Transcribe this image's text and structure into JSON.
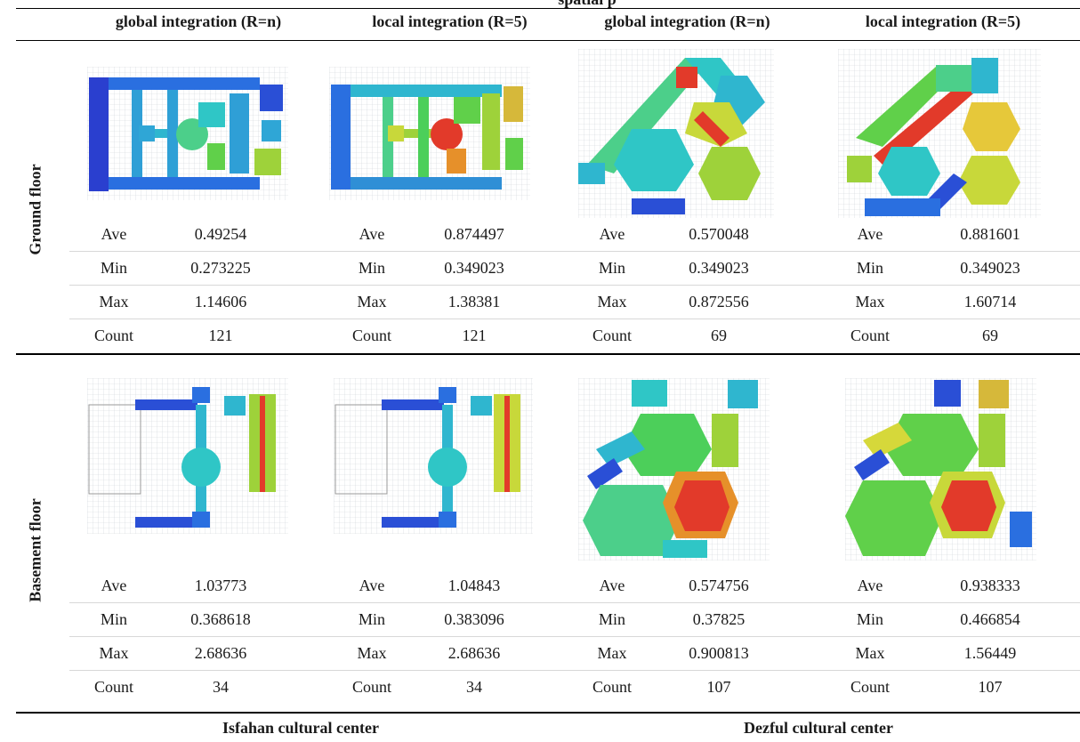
{
  "caption_fragment": "spatial p",
  "column_headers": [
    "global integration (R=n)",
    "local integration (R=5)",
    "global integration (R=n)",
    "local integration (R=5)"
  ],
  "row_labels": {
    "ground": "Ground floor",
    "basement": "Basement floor"
  },
  "stat_labels": [
    "Ave",
    "Min",
    "Max",
    "Count"
  ],
  "ground_values": [
    [
      "0.49254",
      "0.273225",
      "1.14606",
      "121"
    ],
    [
      "0.874497",
      "0.349023",
      "1.38381",
      "121"
    ],
    [
      "0.570048",
      "0.349023",
      "0.872556",
      "69"
    ],
    [
      "0.881601",
      "0.349023",
      "1.60714",
      "69"
    ]
  ],
  "basement_values": [
    [
      "1.03773",
      "0.368618",
      "2.68636",
      "34"
    ],
    [
      "1.04843",
      "0.383096",
      "2.68636",
      "34"
    ],
    [
      "0.574756",
      "0.37825",
      "0.900813",
      "107"
    ],
    [
      "0.938333",
      "0.466854",
      "1.56449",
      "107"
    ]
  ],
  "footer": {
    "isfahan": "Isfahan cultural center",
    "dezful": "Dezful cultural center"
  },
  "colors": {
    "blue": "#2a4fd6",
    "cyan": "#2fc6c6",
    "green": "#4ccf5a",
    "yellow": "#d6d83a",
    "orange": "#e6902a",
    "red": "#e23a2a",
    "grid": "#cfd3d8"
  }
}
